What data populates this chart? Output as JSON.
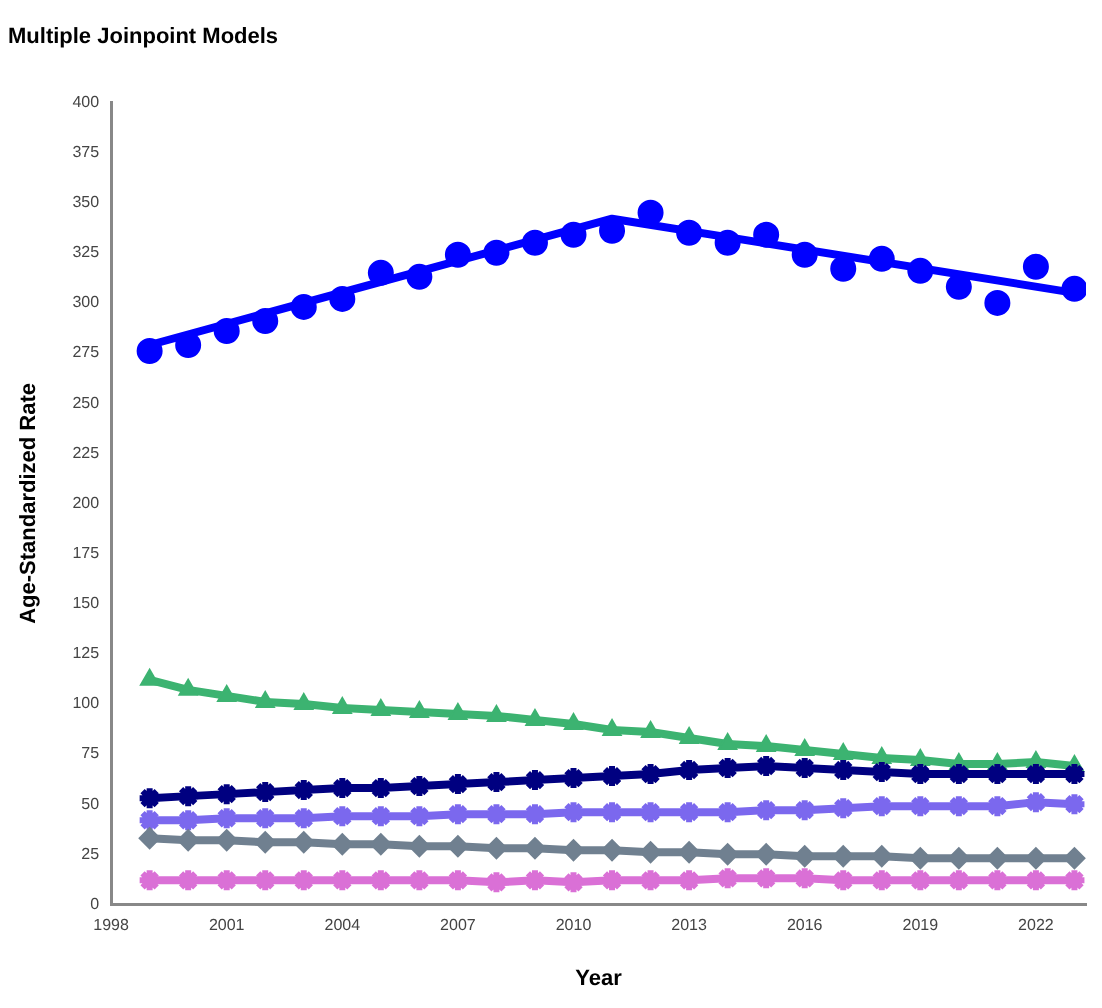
{
  "chart_data": {
    "type": "line",
    "title": "Multiple Joinpoint Models",
    "xlabel": "Year",
    "ylabel": "Age-Standardized Rate",
    "x": [
      1999,
      2000,
      2001,
      2002,
      2003,
      2004,
      2005,
      2006,
      2007,
      2008,
      2009,
      2010,
      2011,
      2012,
      2013,
      2014,
      2015,
      2016,
      2017,
      2018,
      2019,
      2020,
      2021,
      2022,
      2023
    ],
    "xlim": [
      1998,
      2023.3
    ],
    "xticks": [
      1998,
      2001,
      2004,
      2007,
      2010,
      2013,
      2016,
      2019,
      2022
    ],
    "ylim": [
      0,
      400
    ],
    "yticks": [
      0,
      25,
      50,
      75,
      100,
      125,
      150,
      175,
      200,
      225,
      250,
      275,
      300,
      325,
      350,
      375,
      400
    ],
    "grid": false,
    "legend": false,
    "series": [
      {
        "type": "scatter",
        "color": "#0000ff",
        "marker": "circle",
        "values": [
          276,
          279,
          286,
          291,
          298,
          302,
          315,
          313,
          324,
          325,
          330,
          334,
          336,
          345,
          335,
          330,
          334,
          324,
          317,
          322,
          316,
          308,
          300,
          318,
          307
        ]
      },
      {
        "type": "line",
        "color": "#0000ff",
        "marker": "none",
        "x": [
          1999,
          2011,
          2023
        ],
        "values": [
          279,
          342,
          305
        ]
      },
      {
        "type": "line",
        "color": "#3cb371",
        "marker": "triangle",
        "values": [
          112,
          107,
          104,
          101,
          100,
          98,
          97,
          96,
          95,
          94,
          92,
          90,
          87,
          86,
          83,
          80,
          79,
          77,
          75,
          73,
          72,
          70,
          70,
          71,
          69
        ]
      },
      {
        "type": "line",
        "color": "#000080",
        "marker": "cross",
        "values": [
          53,
          54,
          55,
          56,
          57,
          58,
          58,
          59,
          60,
          61,
          62,
          63,
          64,
          65,
          67,
          68,
          69,
          68,
          67,
          66,
          65,
          65,
          65,
          65,
          65
        ]
      },
      {
        "type": "line",
        "color": "#7b68ee",
        "marker": "cross",
        "values": [
          42,
          42,
          43,
          43,
          43,
          44,
          44,
          44,
          45,
          45,
          45,
          46,
          46,
          46,
          46,
          46,
          47,
          47,
          48,
          49,
          49,
          49,
          49,
          51,
          50
        ]
      },
      {
        "type": "line",
        "color": "#708090",
        "marker": "diamond",
        "values": [
          33,
          32,
          32,
          31,
          31,
          30,
          30,
          29,
          29,
          28,
          28,
          27,
          27,
          26,
          26,
          25,
          25,
          24,
          24,
          24,
          23,
          23,
          23,
          23,
          23
        ]
      },
      {
        "type": "line",
        "color": "#da70d6",
        "marker": "cross",
        "values": [
          12,
          12,
          12,
          12,
          12,
          12,
          12,
          12,
          12,
          11,
          12,
          11,
          12,
          12,
          12,
          13,
          13,
          13,
          12,
          12,
          12,
          12,
          12,
          12,
          12
        ]
      }
    ]
  }
}
